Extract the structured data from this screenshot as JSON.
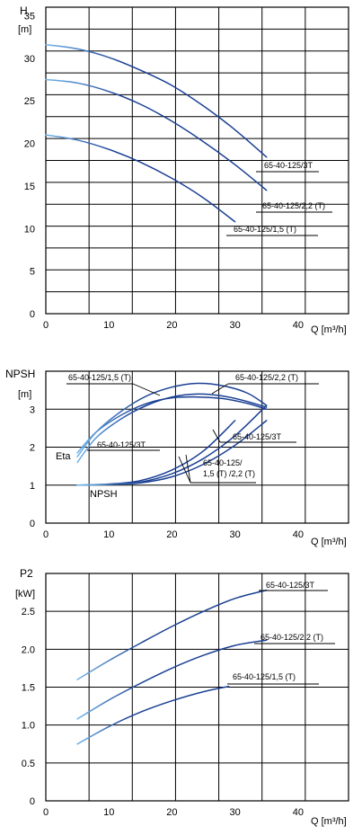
{
  "colors": {
    "curve": "#1a3f93",
    "curve_light": "#6fb4ea",
    "grid": "#000000"
  },
  "chart_data": [
    {
      "type": "line",
      "title": "",
      "ylabel": "H",
      "yunit": "[m]",
      "xlabel": "Q [m³/h]",
      "xlim": [
        0,
        48
      ],
      "ylim": [
        0,
        36
      ],
      "xticks": [
        0,
        10,
        20,
        30,
        40
      ],
      "yticks": [
        0,
        5,
        10,
        15,
        20,
        25,
        30,
        35
      ],
      "grid": true,
      "series": [
        {
          "name": "65-40-125/3T",
          "x": [
            0,
            5,
            10,
            15,
            20,
            25,
            30,
            35
          ],
          "y": [
            31.6,
            31.1,
            30.1,
            28.6,
            26.8,
            24.4,
            21.6,
            18.4
          ]
        },
        {
          "name": "65-40-125/2,2 (T)",
          "x": [
            0,
            5,
            10,
            15,
            20,
            25,
            30,
            35
          ],
          "y": [
            27.5,
            27.1,
            26.1,
            24.6,
            22.6,
            20.2,
            17.5,
            14.5
          ]
        },
        {
          "name": "65-40-125/1,5 (T)",
          "x": [
            0,
            5,
            10,
            15,
            20,
            25,
            30
          ],
          "y": [
            21.0,
            20.4,
            19.3,
            17.8,
            15.9,
            13.6,
            10.8
          ]
        }
      ]
    },
    {
      "type": "line",
      "title": "",
      "ylabel": "NPSH",
      "yunit": "[m]",
      "xlabel": "Q [m³/h]",
      "xlim": [
        0,
        48
      ],
      "ylim": [
        0,
        4
      ],
      "xticks": [
        0,
        10,
        20,
        30,
        40
      ],
      "yticks": [
        0,
        1,
        2,
        3
      ],
      "grid": true,
      "curve_labels": [
        "Eta",
        "NPSH"
      ],
      "series": [
        {
          "name": "65-40-125/1,5 (T)",
          "kind": "Eta",
          "x": [
            5,
            8,
            12,
            16,
            20,
            24,
            28,
            32,
            35
          ],
          "y": [
            1.6,
            2.25,
            2.75,
            3.1,
            3.32,
            3.4,
            3.35,
            3.2,
            3.05
          ]
        },
        {
          "name": "65-40-125/2,2 (T)",
          "kind": "Eta",
          "x": [
            5,
            8,
            12,
            16,
            20,
            24,
            28,
            32,
            35
          ],
          "y": [
            1.75,
            2.4,
            2.95,
            3.35,
            3.58,
            3.68,
            3.62,
            3.42,
            3.1
          ]
        },
        {
          "name": "65-40-125/3T",
          "kind": "Eta",
          "x": [
            5,
            8,
            12,
            16,
            20,
            24,
            28,
            32,
            35
          ],
          "y": [
            1.85,
            2.4,
            2.85,
            3.15,
            3.3,
            3.32,
            3.28,
            3.15,
            3.0
          ]
        },
        {
          "name": "65-40-125/1,5 (T)",
          "kind": "NPSH",
          "x": [
            5,
            10,
            15,
            20,
            25,
            30
          ],
          "y": [
            1.0,
            1.03,
            1.12,
            1.4,
            1.9,
            2.7
          ]
        },
        {
          "name": "65-40-125/2,2 (T)",
          "kind": "NPSH",
          "x": [
            5,
            10,
            15,
            20,
            25,
            30,
            35
          ],
          "y": [
            1.0,
            1.02,
            1.08,
            1.3,
            1.7,
            2.3,
            3.1
          ]
        },
        {
          "name": "65-40-125/3T",
          "kind": "NPSH",
          "x": [
            5,
            10,
            15,
            20,
            25,
            30,
            35
          ],
          "y": [
            1.0,
            1.02,
            1.06,
            1.22,
            1.55,
            2.05,
            2.7
          ]
        }
      ],
      "labels": {
        "a": "65-40-125/1,5 (T)",
        "b": "65-40-125/2,2 (T)",
        "c": "65-40-125/3T",
        "d": "65-40-125/3T",
        "e1": "65-40-125/",
        "e2": "1,5 (T) /2,2 (T)"
      }
    },
    {
      "type": "line",
      "title": "",
      "ylabel": "P2",
      "yunit": "[kW]",
      "xlabel": "Q [m³/h]",
      "xlim": [
        0,
        48
      ],
      "ylim": [
        0,
        3
      ],
      "xticks": [
        0,
        10,
        20,
        30,
        40
      ],
      "yticks": [
        "0",
        "0.5",
        "1.0",
        "1.5",
        "2.0",
        "2.5"
      ],
      "grid": true,
      "series": [
        {
          "name": "65-40-125/3T",
          "x": [
            5,
            10,
            15,
            20,
            25,
            30,
            35
          ],
          "y": [
            1.6,
            1.85,
            2.08,
            2.3,
            2.5,
            2.67,
            2.78
          ]
        },
        {
          "name": "65-40-125/2,2 (T)",
          "x": [
            5,
            10,
            15,
            20,
            25,
            30,
            35
          ],
          "y": [
            1.08,
            1.33,
            1.55,
            1.75,
            1.92,
            2.05,
            2.12
          ]
        },
        {
          "name": "65-40-125/1,5 (T)",
          "x": [
            5,
            10,
            15,
            20,
            25,
            29
          ],
          "y": [
            0.75,
            0.98,
            1.17,
            1.32,
            1.44,
            1.51
          ]
        }
      ]
    }
  ]
}
